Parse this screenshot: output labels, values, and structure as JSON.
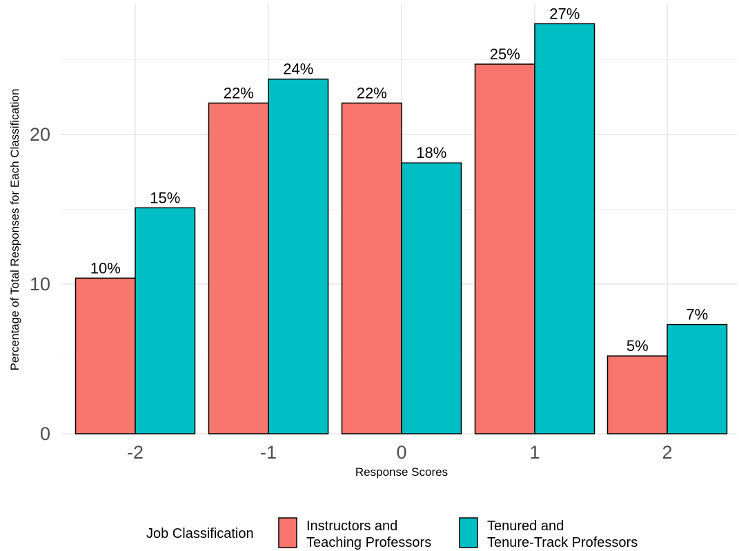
{
  "chart_data": {
    "type": "bar",
    "title": "",
    "xlabel": "Response Scores",
    "ylabel": "Percentage of Total Responses for Each Classification",
    "categories": [
      "-2",
      "-1",
      "0",
      "1",
      "2"
    ],
    "series": [
      {
        "name": "Instructors and Teaching Professors",
        "name_lines": [
          "Instructors and",
          "Teaching Professors"
        ],
        "color": "#F8766D",
        "values": [
          10.4,
          22.1,
          22.1,
          24.7,
          5.2
        ],
        "labels": [
          "10%",
          "22%",
          "22%",
          "25%",
          "5%"
        ]
      },
      {
        "name": "Tenured and Tenure-Track Professors",
        "name_lines": [
          "Tenured and",
          "Tenure-Track Professors"
        ],
        "color": "#00BFC4",
        "values": [
          15.1,
          23.7,
          18.1,
          27.4,
          7.3
        ],
        "labels": [
          "15%",
          "24%",
          "18%",
          "27%",
          "7%"
        ]
      }
    ],
    "ylim": [
      0,
      28.5
    ],
    "yticks": [
      0,
      10,
      20
    ],
    "grid": true,
    "legend": {
      "title": "Job Classification",
      "position": "bottom"
    }
  }
}
